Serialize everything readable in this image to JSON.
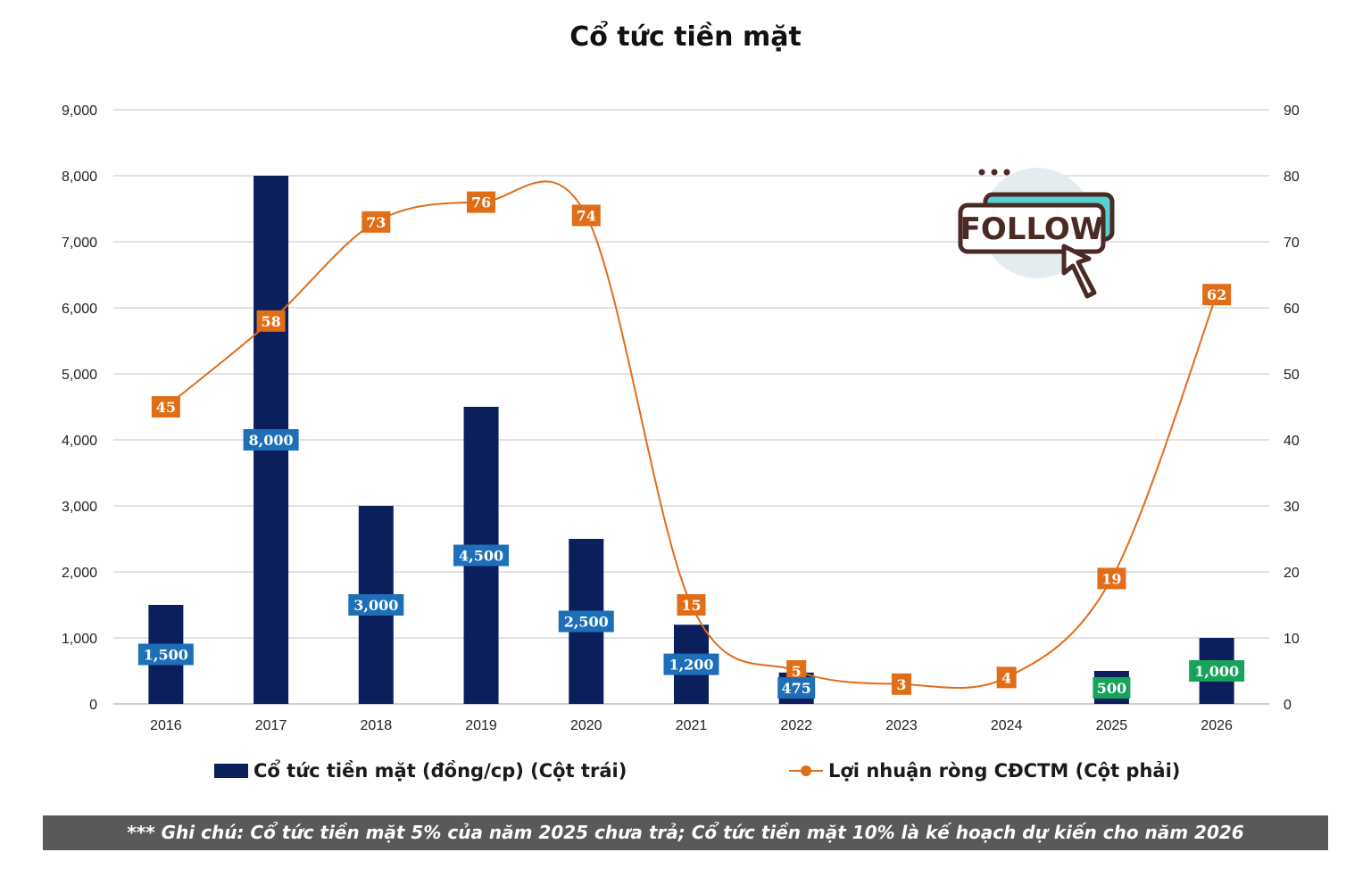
{
  "title": "Cổ tức tiền mặt",
  "legend": {
    "bar_label": "Cổ tức tiền mặt (đồng/cp) (Cột trái)",
    "line_label": "Lợi nhuận ròng CĐCTM (Cột phải)"
  },
  "note": "*** Ghi chú: Cổ tức tiền mặt 5% của năm 2025 chưa trả; Cổ tức tiền mặt 10% là kế hoạch dự kiến cho năm 2026",
  "follow_badge": {
    "text": "FOLLOW"
  },
  "colors": {
    "bar": "#0b1f5c",
    "bar_label_bg": "#1d6fb8",
    "bar_label_highlight_bg": "#17a35a",
    "line": "#e06d17",
    "grid": "#d9d9d9",
    "axis_text": "#222222",
    "note_bg": "#595959"
  },
  "chart_data": {
    "type": "bar",
    "categories": [
      "2016",
      "2017",
      "2018",
      "2019",
      "2020",
      "2021",
      "2022",
      "2023",
      "2024",
      "2025",
      "2026"
    ],
    "series": [
      {
        "name": "Cổ tức tiền mặt (đồng/cp) (Cột trái)",
        "type": "bar",
        "axis": "left",
        "values": [
          1500,
          8000,
          3000,
          4500,
          2500,
          1200,
          475,
          0,
          0,
          500,
          1000
        ],
        "labels": [
          "1,500",
          "8,000",
          "3,000",
          "4,500",
          "2,500",
          "1,200",
          "475",
          "",
          "",
          "500",
          "1,000"
        ],
        "highlight": [
          false,
          false,
          false,
          false,
          false,
          false,
          false,
          false,
          false,
          true,
          true
        ]
      },
      {
        "name": "Lợi nhuận ròng CĐCTM (Cột phải)",
        "type": "line",
        "smooth": true,
        "axis": "right",
        "values": [
          45,
          58,
          73,
          76,
          74,
          15,
          5,
          3,
          4,
          19,
          62
        ],
        "labels": [
          "45",
          "58",
          "73",
          "76",
          "74",
          "15",
          "5",
          "3",
          "4",
          "19",
          "62"
        ]
      }
    ],
    "y_left": {
      "lim": [
        0,
        9000
      ],
      "ticks": [
        "0",
        "1,000",
        "2,000",
        "3,000",
        "4,000",
        "5,000",
        "6,000",
        "7,000",
        "8,000",
        "9,000"
      ]
    },
    "y_right": {
      "lim": [
        0,
        90
      ],
      "ticks": [
        "0",
        "10",
        "20",
        "30",
        "40",
        "50",
        "60",
        "70",
        "80",
        "90"
      ]
    },
    "grid": true,
    "legend_position": "bottom"
  }
}
